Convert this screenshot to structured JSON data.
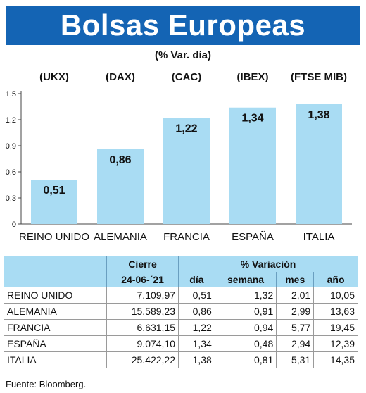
{
  "header": {
    "title": "Bolsas Europeas",
    "subtitle": "(% Var. día)"
  },
  "colors": {
    "title_bg": "#1464b4",
    "bar": "#a9dcf3",
    "table_header": "#a9dcf3"
  },
  "chart_data": {
    "type": "bar",
    "categories": [
      "REINO UNIDO",
      "ALEMANIA",
      "FRANCIA",
      "ESPAÑA",
      "ITALIA"
    ],
    "tickers": [
      "(UKX)",
      "(DAX)",
      "(CAC)",
      "(IBEX)",
      "(FTSE MIB)"
    ],
    "values": [
      0.51,
      0.86,
      1.22,
      1.34,
      1.38
    ],
    "value_labels": [
      "0,51",
      "0,86",
      "1,22",
      "1,34",
      "1,38"
    ],
    "ylim": [
      0,
      1.5
    ],
    "yticks": [
      0,
      0.3,
      0.6,
      0.9,
      1.2,
      1.5
    ],
    "ytick_labels": [
      "0",
      "0,3",
      "0,6",
      "0,9",
      "1,2",
      "1,5"
    ],
    "grid": false
  },
  "table": {
    "header_group": {
      "cierre": "Cierre",
      "variacion": "% Variación"
    },
    "columns": {
      "date": "24-06-´21",
      "dia": "día",
      "semana": "semana",
      "mes": "mes",
      "ano": "año"
    },
    "rows": [
      {
        "pais": "REINO UNIDO",
        "cierre": "7.109,97",
        "dia": "0,51",
        "semana": "1,32",
        "mes": "2,01",
        "ano": "10,05"
      },
      {
        "pais": "ALEMANIA",
        "cierre": "15.589,23",
        "dia": "0,86",
        "semana": "0,91",
        "mes": "2,99",
        "ano": "13,63"
      },
      {
        "pais": "FRANCIA",
        "cierre": "6.631,15",
        "dia": "1,22",
        "semana": "0,94",
        "mes": "5,77",
        "ano": "19,45"
      },
      {
        "pais": "ESPAÑA",
        "cierre": "9.074,10",
        "dia": "1,34",
        "semana": "0,48",
        "mes": "2,94",
        "ano": "12,39"
      },
      {
        "pais": "ITALIA",
        "cierre": "25.422,22",
        "dia": "1,38",
        "semana": "0,81",
        "mes": "5,31",
        "ano": "14,35"
      }
    ]
  },
  "source": "Fuente: Bloomberg."
}
